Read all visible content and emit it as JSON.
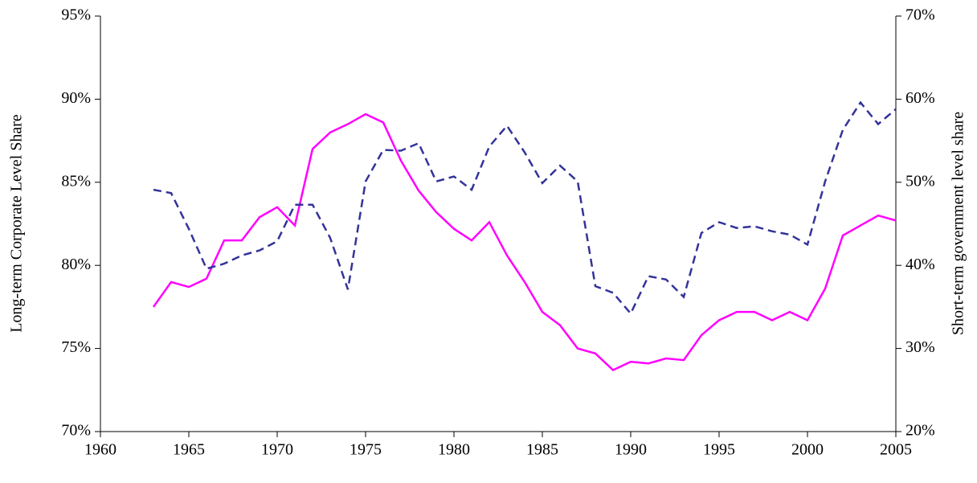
{
  "chart_data": {
    "type": "line",
    "ylabel": "Long-term Corporate Level Share",
    "y2label": "Short-term government  level share",
    "x": [
      1963,
      1964,
      1965,
      1966,
      1967,
      1968,
      1969,
      1970,
      1971,
      1972,
      1973,
      1974,
      1975,
      1976,
      1977,
      1978,
      1979,
      1980,
      1981,
      1982,
      1983,
      1984,
      1985,
      1986,
      1987,
      1988,
      1989,
      1990,
      1991,
      1992,
      1993,
      1994,
      1995,
      1996,
      1997,
      1998,
      1999,
      2000,
      2001,
      2002,
      2003,
      2004,
      2005
    ],
    "xlim": [
      1960,
      2005
    ],
    "xticks": [
      1960,
      1965,
      1970,
      1975,
      1980,
      1985,
      1990,
      1995,
      2000,
      2005
    ],
    "ylim": [
      70,
      95
    ],
    "yticks": [
      {
        "value": 70,
        "label": "70%"
      },
      {
        "value": 75,
        "label": "75%"
      },
      {
        "value": 80,
        "label": "80%"
      },
      {
        "value": 85,
        "label": "85%"
      },
      {
        "value": 90,
        "label": "90%"
      },
      {
        "value": 95,
        "label": "95%"
      }
    ],
    "y2lim": [
      20,
      70
    ],
    "y2ticks": [
      {
        "value": 20,
        "label": "20%"
      },
      {
        "value": 30,
        "label": "30%"
      },
      {
        "value": 40,
        "label": "40%"
      },
      {
        "value": 50,
        "label": "50%"
      },
      {
        "value": 60,
        "label": "60%"
      },
      {
        "value": 70,
        "label": "70%"
      }
    ],
    "series": [
      {
        "color": "#ff00ff",
        "dash": false,
        "values": [
          77.5,
          79.0,
          78.7,
          79.2,
          81.5,
          81.5,
          82.9,
          83.5,
          82.4,
          87.0,
          88.0,
          88.5,
          89.1,
          88.6,
          86.3,
          84.5,
          83.2,
          82.2,
          81.5,
          82.6,
          80.6,
          79.0,
          77.2,
          76.4,
          75.0,
          74.7,
          73.7,
          74.2,
          74.1,
          74.4,
          74.3,
          75.8,
          76.7,
          77.2,
          77.2,
          76.7,
          77.2,
          76.7,
          78.6,
          81.8,
          82.4,
          83.0,
          82.7
        ]
      },
      {
        "color": "#333399",
        "dash": true,
        "axis": "y2",
        "values": [
          49.1,
          48.7,
          44.4,
          39.6,
          40.2,
          41.2,
          41.8,
          42.9,
          47.3,
          47.3,
          43.3,
          37.1,
          50.1,
          53.9,
          53.8,
          54.7,
          50.1,
          50.7,
          49.1,
          54.3,
          56.8,
          53.6,
          49.9,
          52.0,
          50.1,
          37.5,
          36.7,
          34.2,
          38.7,
          38.3,
          36.2,
          43.9,
          45.2,
          44.5,
          44.7,
          44.1,
          43.7,
          42.5,
          50.1,
          56.3,
          59.6,
          57.0,
          58.8
        ]
      }
    ]
  }
}
